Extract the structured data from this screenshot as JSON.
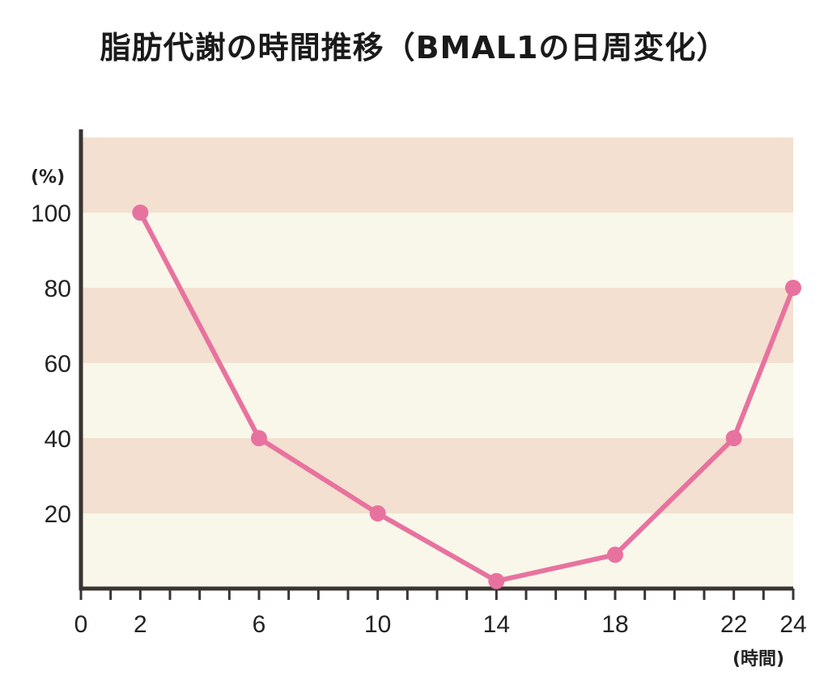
{
  "title": "脂肪代謝の時間推移（BMAL1の日周変化）",
  "chart_data": {
    "type": "line",
    "title": "脂肪代謝の時間推移（BMAL1の日周変化）",
    "ylabel": "(%)",
    "xlabel": "(時間)",
    "xlim": [
      0,
      24
    ],
    "ylim": [
      0,
      120
    ],
    "x_ticks": [
      0,
      2,
      6,
      10,
      14,
      18,
      22,
      24
    ],
    "y_ticks": [
      20,
      40,
      60,
      80,
      100
    ],
    "series": [
      {
        "x": [
          2,
          6,
          10,
          14,
          18,
          22,
          24
        ],
        "values": [
          100,
          40,
          20,
          2,
          9,
          40,
          80
        ]
      }
    ],
    "colors": {
      "line": "#e8729f",
      "band_dark": "#f3e0d0",
      "band_light": "#f9f6ea",
      "axis": "#3a3432"
    }
  }
}
